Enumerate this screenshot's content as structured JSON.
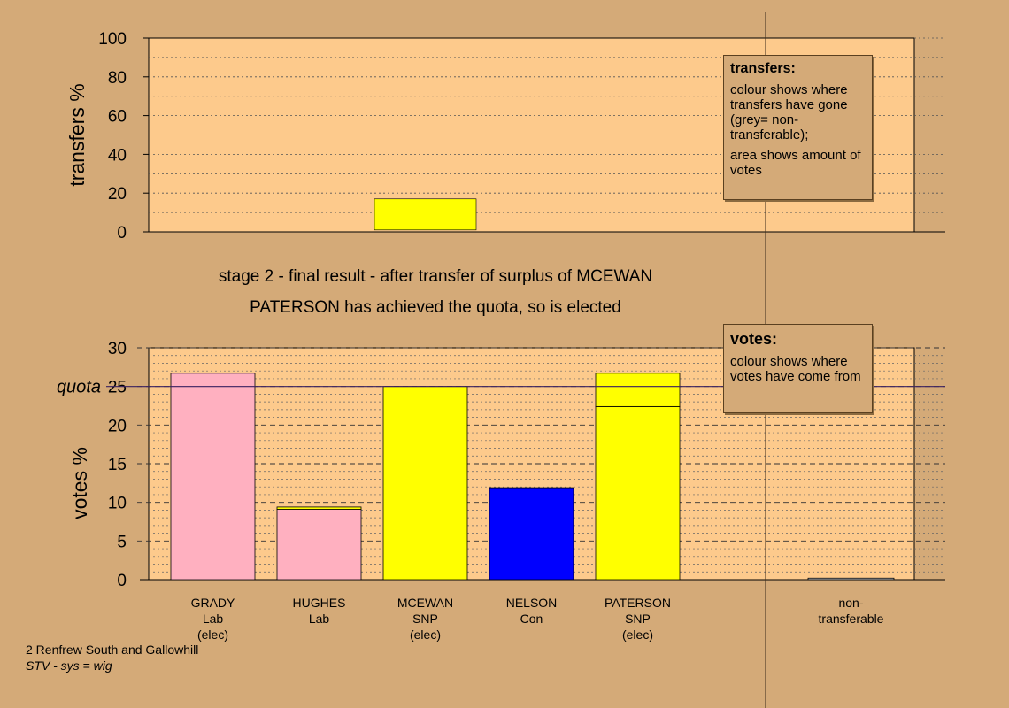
{
  "captions": {
    "stage": "stage 2 - final result - after transfer of surplus of MCEWAN",
    "result": "PATERSON has achieved the quota, so is elected"
  },
  "footer": {
    "line1": "2 Renfrew South and Gallowhill",
    "line2": "STV - sys = wig"
  },
  "legend_transfers": {
    "title": "transfers:",
    "p1": "colour shows where transfers have gone (grey= non-transferable);",
    "p2": "area shows amount of votes"
  },
  "legend_votes": {
    "title": "votes:",
    "p1": "colour shows where votes have come from"
  },
  "colors": {
    "background": "#d4aa78",
    "plot_background": "#fdca8c",
    "Lab": "#ffb0c0",
    "SNP": "#ffff00",
    "Con": "#0000ff",
    "nontransferable": "#bbbbbb"
  },
  "chart_data": [
    {
      "type": "bar",
      "ylabel": "transfers %",
      "ylim": [
        0,
        100
      ],
      "yticks": [
        0,
        20,
        40,
        60,
        80,
        100
      ],
      "grid": true,
      "legend": "top-right",
      "categories": [
        "GRADY",
        "HUGHES",
        "MCEWAN",
        "NELSON",
        "PATERSON",
        "non-transferable"
      ],
      "series": [
        {
          "color": "#ffb0c0",
          "values": [
            0.0,
            0.0,
            0.0,
            0.0,
            0.0,
            0.0
          ]
        },
        {
          "color": "#ffff00",
          "values": [
            0.0,
            0.0,
            16.0,
            0.0,
            0.0,
            0.0
          ]
        },
        {
          "color": "#ffb0c0",
          "values": [
            0.0,
            0.0,
            0.0,
            0.0,
            0.0,
            0.0
          ]
        }
      ],
      "stack_base": [
        0,
        0,
        1.0,
        0,
        0,
        0
      ]
    },
    {
      "type": "bar",
      "ylabel": "votes %",
      "ylim": [
        0,
        30
      ],
      "yticks": [
        0,
        5,
        10,
        15,
        20,
        25,
        30
      ],
      "grid": true,
      "legend": "top-right",
      "quota": 25.0,
      "quota_label": "quota",
      "categories": [
        "GRADY",
        "HUGHES",
        "MCEWAN",
        "NELSON",
        "PATERSON",
        "non-transferable"
      ],
      "category_lines": [
        [
          "GRADY",
          "Lab",
          "(elec)"
        ],
        [
          "HUGHES",
          "Lab"
        ],
        [
          "MCEWAN",
          "SNP",
          "(elec)"
        ],
        [
          "NELSON",
          "Con"
        ],
        [
          "PATERSON",
          "SNP",
          "(elec)"
        ],
        [
          "non-",
          "transferable"
        ]
      ],
      "party": [
        "Lab",
        "Lab",
        "SNP",
        "Con",
        "SNP",
        ""
      ],
      "segments": [
        [
          {
            "value": 26.7,
            "color": "#ffb0c0"
          }
        ],
        [
          {
            "value": 9.1,
            "color": "#ffb0c0"
          },
          {
            "value": 0.3,
            "color": "#ffff00"
          }
        ],
        [
          {
            "value": 25.0,
            "color": "#ffff00"
          }
        ],
        [
          {
            "value": 11.9,
            "color": "#0000ff"
          }
        ],
        [
          {
            "value": 22.4,
            "color": "#ffff00"
          },
          {
            "value": 4.3,
            "color": "#ffff00"
          }
        ],
        [
          {
            "value": 0.2,
            "color": "#bbbbbb"
          }
        ]
      ]
    }
  ]
}
